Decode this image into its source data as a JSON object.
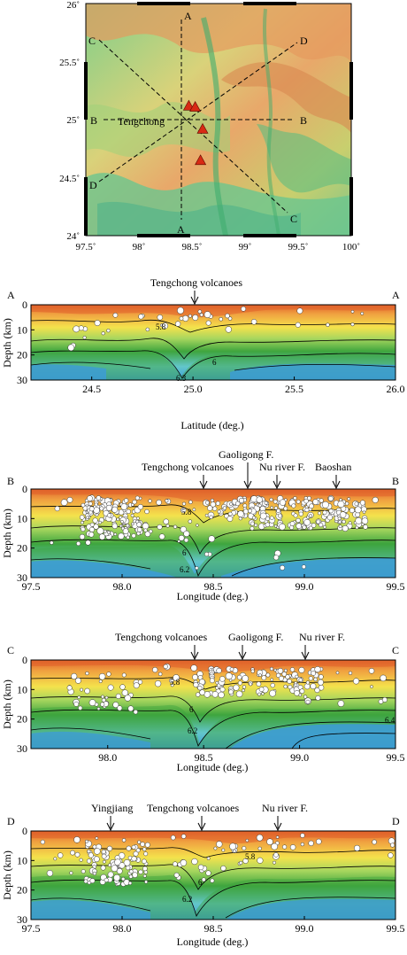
{
  "colors": {
    "hot": "#e0602a",
    "orange": "#f0a040",
    "yellow": "#f4e24c",
    "lightgreen": "#a7d65e",
    "green": "#3ea53e",
    "cyan": "#63c6ca",
    "blue": "#3c9bd8",
    "volcano": "#d82a14"
  },
  "map": {
    "x_ticks": [
      "97.5˚",
      "98˚",
      "98.5˚",
      "99˚",
      "99.5˚",
      "100˚"
    ],
    "y_ticks": [
      "26˚",
      "25.5˚",
      "25˚",
      "24.5˚",
      "24˚"
    ],
    "city_label": "Tengchong",
    "profile_labels": {
      "A_top": "A",
      "A_bottom": "A",
      "B_left": "B",
      "B_right": "B",
      "C_top": "C",
      "C_bottom": "C",
      "D_top": "D",
      "D_bottom": "D"
    },
    "volcanoes": [
      {
        "lon": 98.47,
        "lat": 25.12
      },
      {
        "lon": 98.53,
        "lat": 25.11
      },
      {
        "lon": 98.6,
        "lat": 24.92
      },
      {
        "lon": 98.58,
        "lat": 24.65
      }
    ]
  },
  "sections": [
    {
      "left_letter": "A",
      "right_letter": "A",
      "xlabel": "Latitude (deg.)",
      "ylabel": "Depth (km)",
      "x_ticks": [
        "24.5",
        "25.0",
        "25.5",
        "26.0"
      ],
      "y_ticks": [
        "0",
        "10",
        "20",
        "30"
      ],
      "annotations": [
        {
          "text": "Tengchong volcanoes"
        }
      ],
      "contour_labels": [
        "5.8",
        "6",
        "6.3"
      ]
    },
    {
      "left_letter": "B",
      "right_letter": "B",
      "xlabel": "Longitude (deg.)",
      "ylabel": "Depth (km)",
      "x_ticks": [
        "97.5",
        "98.0",
        "98.5",
        "99.0",
        "99.5"
      ],
      "y_ticks": [
        "0",
        "10",
        "20",
        "30"
      ],
      "annotations": [
        {
          "text": "Tengchong volcanoes"
        },
        {
          "text": "Gaoligong F."
        },
        {
          "text": "Nu river F."
        },
        {
          "text": "Baoshan"
        }
      ],
      "contour_labels": [
        "5.8",
        "6",
        "6.2"
      ]
    },
    {
      "left_letter": "C",
      "right_letter": "C",
      "xlabel": "Longitude (deg.)",
      "ylabel": "Depth (km)",
      "x_ticks": [
        "98.0",
        "98.5",
        "99.0",
        "99.5"
      ],
      "y_ticks": [
        "0",
        "10",
        "20",
        "30"
      ],
      "annotations": [
        {
          "text": "Tengchong volcanoes"
        },
        {
          "text": "Gaoligong F."
        },
        {
          "text": "Nu river F."
        }
      ],
      "contour_labels": [
        "5.8",
        "6",
        "6.2",
        "6.4"
      ]
    },
    {
      "left_letter": "D",
      "right_letter": "D",
      "xlabel": "Longitude (deg.)",
      "ylabel": "Depth (km)",
      "x_ticks": [
        "97.5",
        "98.0",
        "98.5",
        "99.0",
        "99.5"
      ],
      "y_ticks": [
        "0",
        "10",
        "20",
        "30"
      ],
      "annotations": [
        {
          "text": "Yingjiang"
        },
        {
          "text": "Tengchong volcanoes"
        },
        {
          "text": "Nu river F."
        }
      ],
      "contour_labels": [
        "5.8",
        "6",
        "6.2"
      ]
    }
  ]
}
